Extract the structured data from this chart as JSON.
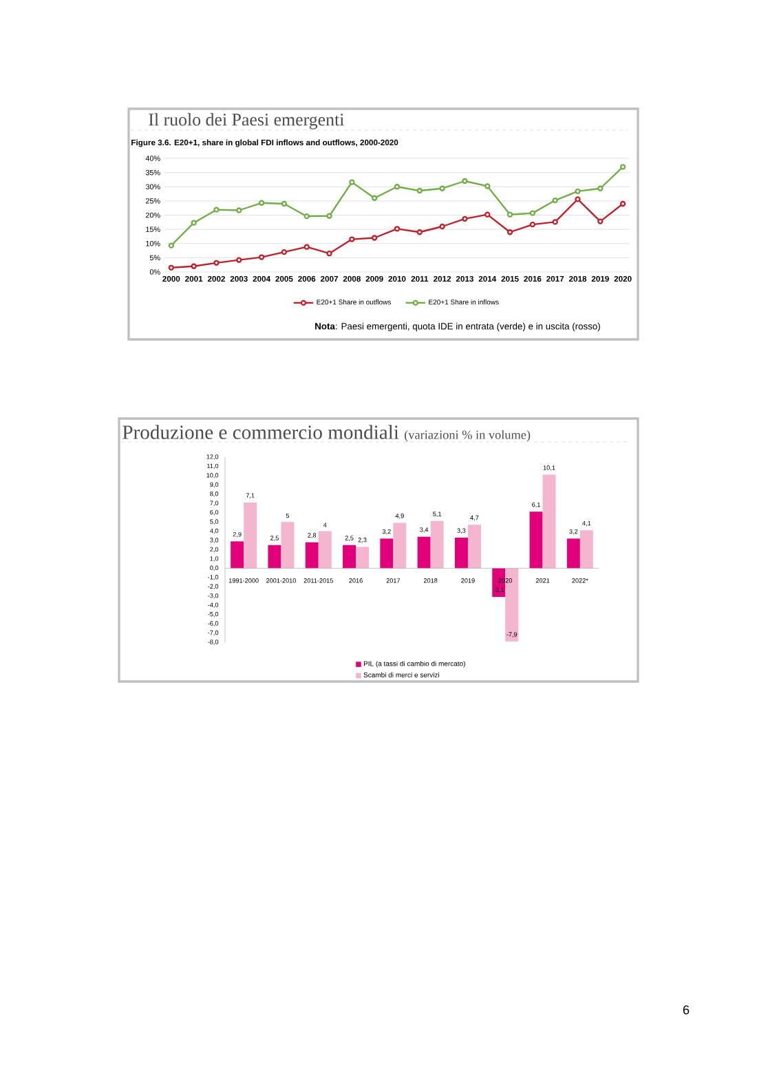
{
  "chart_data": [
    {
      "type": "line",
      "title": "Il ruolo dei Paesi emergenti",
      "subtitle": "Figure 3.6. E20+1, share in global FDI inflows and outflows, 2000-2020",
      "categories": [
        "2000",
        "2001",
        "2002",
        "2003",
        "2004",
        "2005",
        "2006",
        "2007",
        "2008",
        "2009",
        "2010",
        "2011",
        "2012",
        "2013",
        "2014",
        "2015",
        "2016",
        "2017",
        "2018",
        "2019",
        "2020"
      ],
      "series": [
        {
          "name": "E20+1 Share in outflows",
          "color": "#c0202a",
          "values": [
            1.5,
            2,
            3.2,
            4.2,
            5.2,
            7,
            8.8,
            6.5,
            11.5,
            12,
            15.2,
            14,
            16,
            18.7,
            20.2,
            14,
            16.7,
            17.6,
            25.6,
            17.8,
            24
          ]
        },
        {
          "name": "E20+1 Share in inflows",
          "color": "#70ad47",
          "values": [
            9.3,
            17.3,
            21.9,
            21.7,
            24.3,
            24,
            19.6,
            19.7,
            31.6,
            26,
            30,
            28.6,
            29.4,
            32,
            30.2,
            20.2,
            20.7,
            25.2,
            28.4,
            29.4,
            37
          ]
        }
      ],
      "ylim": [
        0,
        40
      ],
      "yticks": [
        {
          "value": 0,
          "label": "0%"
        },
        {
          "value": 5,
          "label": "5%"
        },
        {
          "value": 10,
          "label": "10%"
        },
        {
          "value": 15,
          "label": "15%"
        },
        {
          "value": 20,
          "label": "20%"
        },
        {
          "value": 25,
          "label": "25%"
        },
        {
          "value": 30,
          "label": "30%"
        },
        {
          "value": 35,
          "label": "35%"
        },
        {
          "value": 40,
          "label": "40%"
        }
      ],
      "grid": "y",
      "legend": "bottom",
      "marker": "circle",
      "line_style": "solid",
      "annotations": [
        "**Nota**: Paesi emergenti, quota IDE in entrata (verde) e in uscita (rosso)"
      ]
    },
    {
      "type": "bar",
      "title": "Produzione e commercio mondiali",
      "subtitle": "(variazioni % in volume)",
      "categories": [
        "1991-2000",
        "2001-2010",
        "2011-2015",
        "2016",
        "2017",
        "2018",
        "2019",
        "2020",
        "2021",
        "2022*"
      ],
      "series": [
        {
          "name": "PIL (a tassi di cambio di mercato)",
          "color": "#e2007a",
          "values": [
            2.9,
            2.5,
            2.8,
            2.5,
            3.2,
            3.4,
            3.3,
            -3.1,
            6.1,
            3.2
          ],
          "value_labels": [
            "2,9",
            "2,5",
            "2,8",
            "2,5",
            "3,2",
            "3,4",
            "3,3",
            "-3,1",
            "6,1",
            "3,2"
          ]
        },
        {
          "name": "Scambi di merci e servizi",
          "color": "#f4b6cf",
          "values": [
            7.1,
            5,
            4,
            2.3,
            4.9,
            5.1,
            4.7,
            -7.9,
            10.1,
            4.1
          ],
          "value_labels": [
            "7,1",
            "5",
            "4",
            "2,3",
            "4,9",
            "5,1",
            "4,7",
            "-7,9",
            "10,1",
            "4,1"
          ]
        }
      ],
      "ylim": [
        -8,
        12
      ],
      "yticks": [
        {
          "value": -8,
          "label": "-8,0"
        },
        {
          "value": -7,
          "label": "-7,0"
        },
        {
          "value": -6,
          "label": "-6,0"
        },
        {
          "value": -5,
          "label": "-5,0"
        },
        {
          "value": -4,
          "label": "-4,0"
        },
        {
          "value": -3,
          "label": "-3,0"
        },
        {
          "value": -2,
          "label": "-2,0"
        },
        {
          "value": -1,
          "label": "-1,0"
        },
        {
          "value": 0,
          "label": "0,0"
        },
        {
          "value": 1,
          "label": "1,0"
        },
        {
          "value": 2,
          "label": "2,0"
        },
        {
          "value": 3,
          "label": "3,0"
        },
        {
          "value": 4,
          "label": "4,0"
        },
        {
          "value": 5,
          "label": "5,0"
        },
        {
          "value": 6,
          "label": "6,0"
        },
        {
          "value": 7,
          "label": "7,0"
        },
        {
          "value": 8,
          "label": "8,0"
        },
        {
          "value": 9,
          "label": "9,0"
        },
        {
          "value": 10,
          "label": "10,0"
        },
        {
          "value": 11,
          "label": "11,0"
        },
        {
          "value": 12,
          "label": "12,0"
        }
      ],
      "legend": "bottom",
      "annotations": [
        "6"
      ]
    }
  ]
}
